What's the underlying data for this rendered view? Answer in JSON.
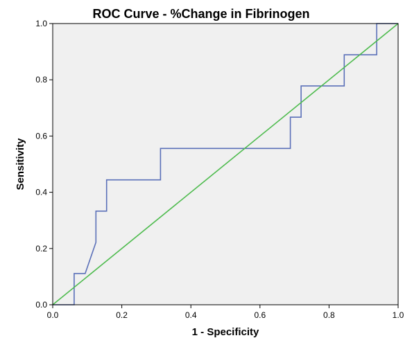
{
  "chart_data": {
    "type": "line",
    "title": "ROC Curve - %Change in Fibrinogen",
    "xlabel": "1 - Specificity",
    "ylabel": "Sensitivity",
    "xlim": [
      0,
      1
    ],
    "ylim": [
      0,
      1
    ],
    "xticks": [
      "0.0",
      "0.2",
      "0.4",
      "0.6",
      "0.8",
      "1.0"
    ],
    "yticks": [
      "0.0",
      "0.2",
      "0.4",
      "0.6",
      "0.8",
      "1.0"
    ],
    "grid": false,
    "colors": {
      "plot_background": "#f0f0f0",
      "roc_curve": "#5a6fb8",
      "reference_line": "#4dbb4d",
      "frame": "#000000"
    },
    "series": [
      {
        "role": "roc-curve",
        "x": [
          0.0,
          0.062,
          0.062,
          0.094,
          0.125,
          0.125,
          0.156,
          0.156,
          0.312,
          0.312,
          0.688,
          0.688,
          0.719,
          0.719,
          0.844,
          0.844,
          0.938,
          0.938,
          1.0
        ],
        "y": [
          0.0,
          0.0,
          0.111,
          0.111,
          0.222,
          0.333,
          0.333,
          0.444,
          0.444,
          0.556,
          0.556,
          0.667,
          0.667,
          0.778,
          0.778,
          0.889,
          0.889,
          1.0,
          1.0
        ]
      },
      {
        "role": "reference-line",
        "x": [
          0.0,
          1.0
        ],
        "y": [
          0.0,
          1.0
        ]
      }
    ]
  }
}
